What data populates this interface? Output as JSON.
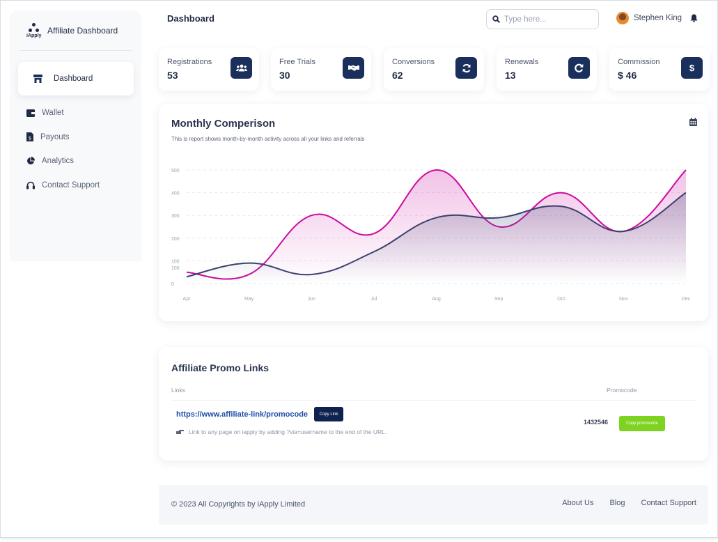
{
  "app": {
    "brand_name": "Affiliate Dashboard",
    "brand_sub": "iApply",
    "page_title": "Dashboard"
  },
  "sidebar": {
    "items": [
      {
        "label": "Dashboard",
        "icon": "store-icon",
        "active": true
      },
      {
        "label": "Wallet",
        "icon": "wallet-icon"
      },
      {
        "label": "Payouts",
        "icon": "file-dollar-icon"
      },
      {
        "label": "Analytics",
        "icon": "pie-chart-icon"
      },
      {
        "label": "Contact Support",
        "icon": "headset-icon"
      }
    ]
  },
  "header": {
    "search_placeholder": "Type here...",
    "user_name": "Stephen King"
  },
  "stats": [
    {
      "label": "Registrations",
      "value": "53",
      "icon": "users-icon",
      "glyph": "👥"
    },
    {
      "label": "Free Trials",
      "value": "30",
      "icon": "handshake-icon",
      "glyph": "🤝"
    },
    {
      "label": "Conversions",
      "value": "62",
      "icon": "sync-icon",
      "glyph": "⟳"
    },
    {
      "label": "Renewals",
      "value": "13",
      "icon": "redo-icon",
      "glyph": "↻"
    },
    {
      "label": "Commission",
      "value": "$ 46",
      "icon": "dollar-icon",
      "glyph": "$"
    }
  ],
  "chart": {
    "title": "Monthly Comperison",
    "subtitle": "This is report shows month-by-month activity across all your links and referrals"
  },
  "chart_data": {
    "type": "line",
    "categories": [
      "Apr",
      "May",
      "Jun",
      "Jul",
      "Aug",
      "Sep",
      "Oct",
      "Nov",
      "Dec"
    ],
    "y_tick_labels": [
      "0",
      "100",
      "100",
      "200",
      "300",
      "400",
      "500"
    ],
    "ylim": [
      0,
      500
    ],
    "grid": true,
    "series": [
      {
        "color": "#cb0c9f",
        "values": [
          50,
          40,
          300,
          220,
          500,
          250,
          400,
          230,
          500
        ]
      },
      {
        "color": "#3a416f",
        "values": [
          30,
          90,
          40,
          140,
          290,
          290,
          340,
          230,
          400
        ]
      }
    ]
  },
  "promo": {
    "title": "Affiliate Promo Links",
    "col_links": "Links",
    "col_promocode": "Promocode",
    "link_url": "https://www.affiliate-link/promocode",
    "copy_link_label": "Copy Link",
    "hint": "Link to any page on iapply by adding ?via=username to the end of the URL.",
    "promocode": "1432546",
    "copy_code_label": "Copy promocode"
  },
  "footer": {
    "copyright": "© 2023 All Copyrights by iApply Limited",
    "links": [
      "About Us",
      "Blog",
      "Contact Support"
    ]
  }
}
